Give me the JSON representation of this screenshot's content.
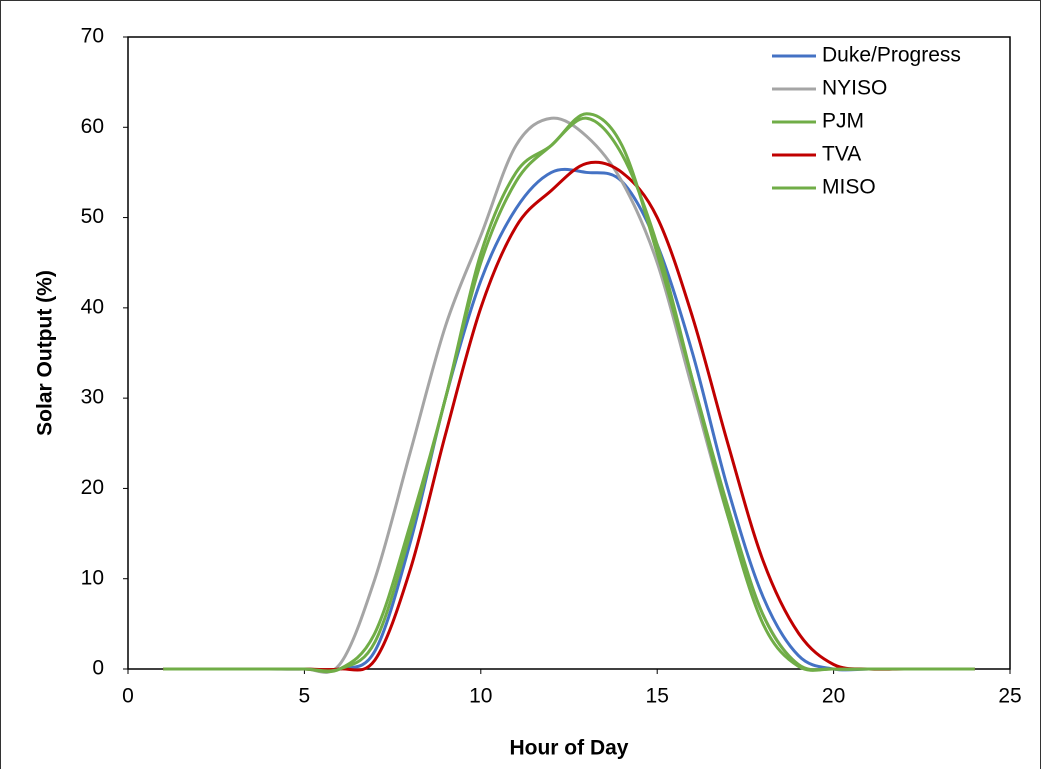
{
  "chart_data": {
    "type": "line",
    "x_label": "Hour of Day",
    "y_label": "Solar Output (%)",
    "x": [
      1,
      2,
      3,
      4,
      5,
      6,
      7,
      8,
      9,
      10,
      11,
      12,
      13,
      14,
      15,
      16,
      17,
      18,
      19,
      20,
      21,
      22,
      23,
      24
    ],
    "series": [
      {
        "name": "Duke/Progress",
        "color": "#4472c4",
        "values": [
          0,
          0,
          0,
          0,
          0,
          0,
          2,
          14,
          30,
          43,
          51,
          55,
          55,
          54,
          47,
          35,
          20,
          8,
          1.5,
          0,
          0,
          0,
          0,
          0
        ]
      },
      {
        "name": "NYISO",
        "color": "#a5a5a5",
        "values": [
          0,
          0,
          0,
          0,
          0,
          0.5,
          10,
          24,
          38,
          48,
          58,
          61,
          59,
          54,
          45,
          31,
          17,
          6,
          0.5,
          0,
          0,
          0,
          0,
          0
        ]
      },
      {
        "name": "PJM",
        "color": "#70ad47",
        "values": [
          0,
          0,
          0,
          0,
          0,
          0,
          4,
          16,
          30,
          46,
          55,
          58,
          61.5,
          58,
          46,
          32,
          18,
          6,
          0.5,
          0,
          0,
          0,
          0,
          0
        ]
      },
      {
        "name": "TVA",
        "color": "#c00000",
        "values": [
          0,
          0,
          0,
          0,
          0,
          0,
          1,
          11,
          26,
          40,
          49,
          53,
          56,
          55,
          50,
          39,
          25,
          12,
          4,
          0.5,
          0,
          0,
          0,
          0
        ]
      },
      {
        "name": "MISO",
        "color": "#70ad47",
        "values": [
          0,
          0,
          0,
          0,
          0,
          0,
          3,
          15,
          30,
          45,
          54,
          58,
          61,
          57,
          47,
          32,
          17,
          5,
          0.3,
          0,
          0,
          0,
          0,
          0
        ]
      }
    ],
    "xlim": [
      0,
      25
    ],
    "xticks": [
      0,
      5,
      10,
      15,
      20,
      25
    ],
    "ylim": [
      0,
      70
    ],
    "yticks": [
      0,
      10,
      20,
      30,
      40,
      50,
      60,
      70
    ],
    "grid": false,
    "legend": "upper right"
  }
}
